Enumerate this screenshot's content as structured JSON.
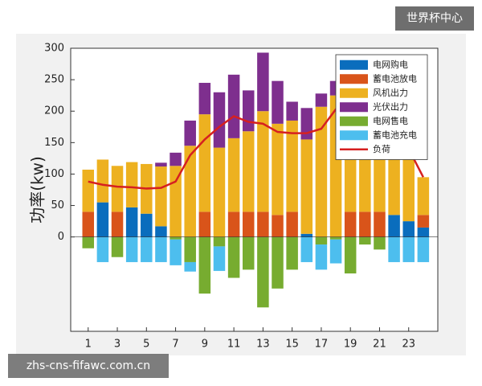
{
  "chart_data": {
    "type": "bar",
    "ylabel": "功率(kw)",
    "categories": [
      1,
      2,
      3,
      4,
      5,
      6,
      7,
      8,
      9,
      10,
      11,
      12,
      13,
      14,
      15,
      16,
      17,
      18,
      19,
      20,
      21,
      22,
      23,
      24
    ],
    "xlim": [
      -0.2,
      25
    ],
    "xticks": [
      1,
      3,
      5,
      7,
      9,
      11,
      13,
      15,
      17,
      19,
      21,
      23
    ],
    "ylim": [
      -150,
      300
    ],
    "yticks": [
      0,
      50,
      100,
      150,
      200,
      250,
      300
    ],
    "legend": "upper right",
    "series": [
      {
        "name": "电网购电",
        "color": "#0a6dbd",
        "values": [
          0,
          55,
          0,
          47,
          37,
          17,
          0,
          0,
          0,
          0,
          0,
          0,
          0,
          0,
          0,
          5,
          0,
          0,
          0,
          0,
          0,
          35,
          25,
          15
        ]
      },
      {
        "name": "蓄电池放电",
        "color": "#d9541a",
        "values": [
          40,
          0,
          40,
          0,
          0,
          0,
          0,
          0,
          40,
          0,
          40,
          40,
          40,
          35,
          40,
          0,
          0,
          0,
          40,
          40,
          40,
          0,
          0,
          20
        ]
      },
      {
        "name": "风机出力",
        "color": "#edb120",
        "values": [
          67,
          68,
          73,
          72,
          79,
          95,
          113,
          145,
          155,
          142,
          117,
          128,
          160,
          145,
          145,
          150,
          207,
          225,
          170,
          150,
          140,
          135,
          135,
          60
        ]
      },
      {
        "name": "光伏出力",
        "color": "#7e2f8e",
        "values": [
          0,
          0,
          0,
          0,
          0,
          6,
          21,
          40,
          50,
          88,
          101,
          65,
          93,
          68,
          30,
          50,
          21,
          23,
          0,
          0,
          0,
          0,
          0,
          0
        ]
      },
      {
        "name": "电网售电",
        "color": "#77ac30",
        "values": [
          -18,
          0,
          -32,
          0,
          0,
          0,
          -4,
          -40,
          -90,
          -15,
          -65,
          -52,
          -112,
          -82,
          -52,
          0,
          -12,
          -4,
          -58,
          -12,
          -20,
          0,
          0,
          0
        ]
      },
      {
        "name": "蓄电池充电",
        "color": "#4dbeee",
        "values": [
          0,
          -40,
          0,
          -40,
          -40,
          -40,
          -41,
          -15,
          0,
          -39,
          0,
          0,
          0,
          0,
          0,
          -40,
          -40,
          -38,
          0,
          0,
          0,
          -40,
          -40,
          -40
        ]
      },
      {
        "name": "负荷",
        "color": "#d62020",
        "type": "line",
        "values": [
          88,
          83,
          80,
          79,
          77,
          78,
          88,
          130,
          155,
          175,
          192,
          183,
          180,
          167,
          165,
          165,
          172,
          203,
          210,
          205,
          195,
          175,
          140,
          95
        ]
      }
    ]
  },
  "watermarks": [
    "世界杯中心",
    "zhs-cns-fifawc.com.cn"
  ]
}
